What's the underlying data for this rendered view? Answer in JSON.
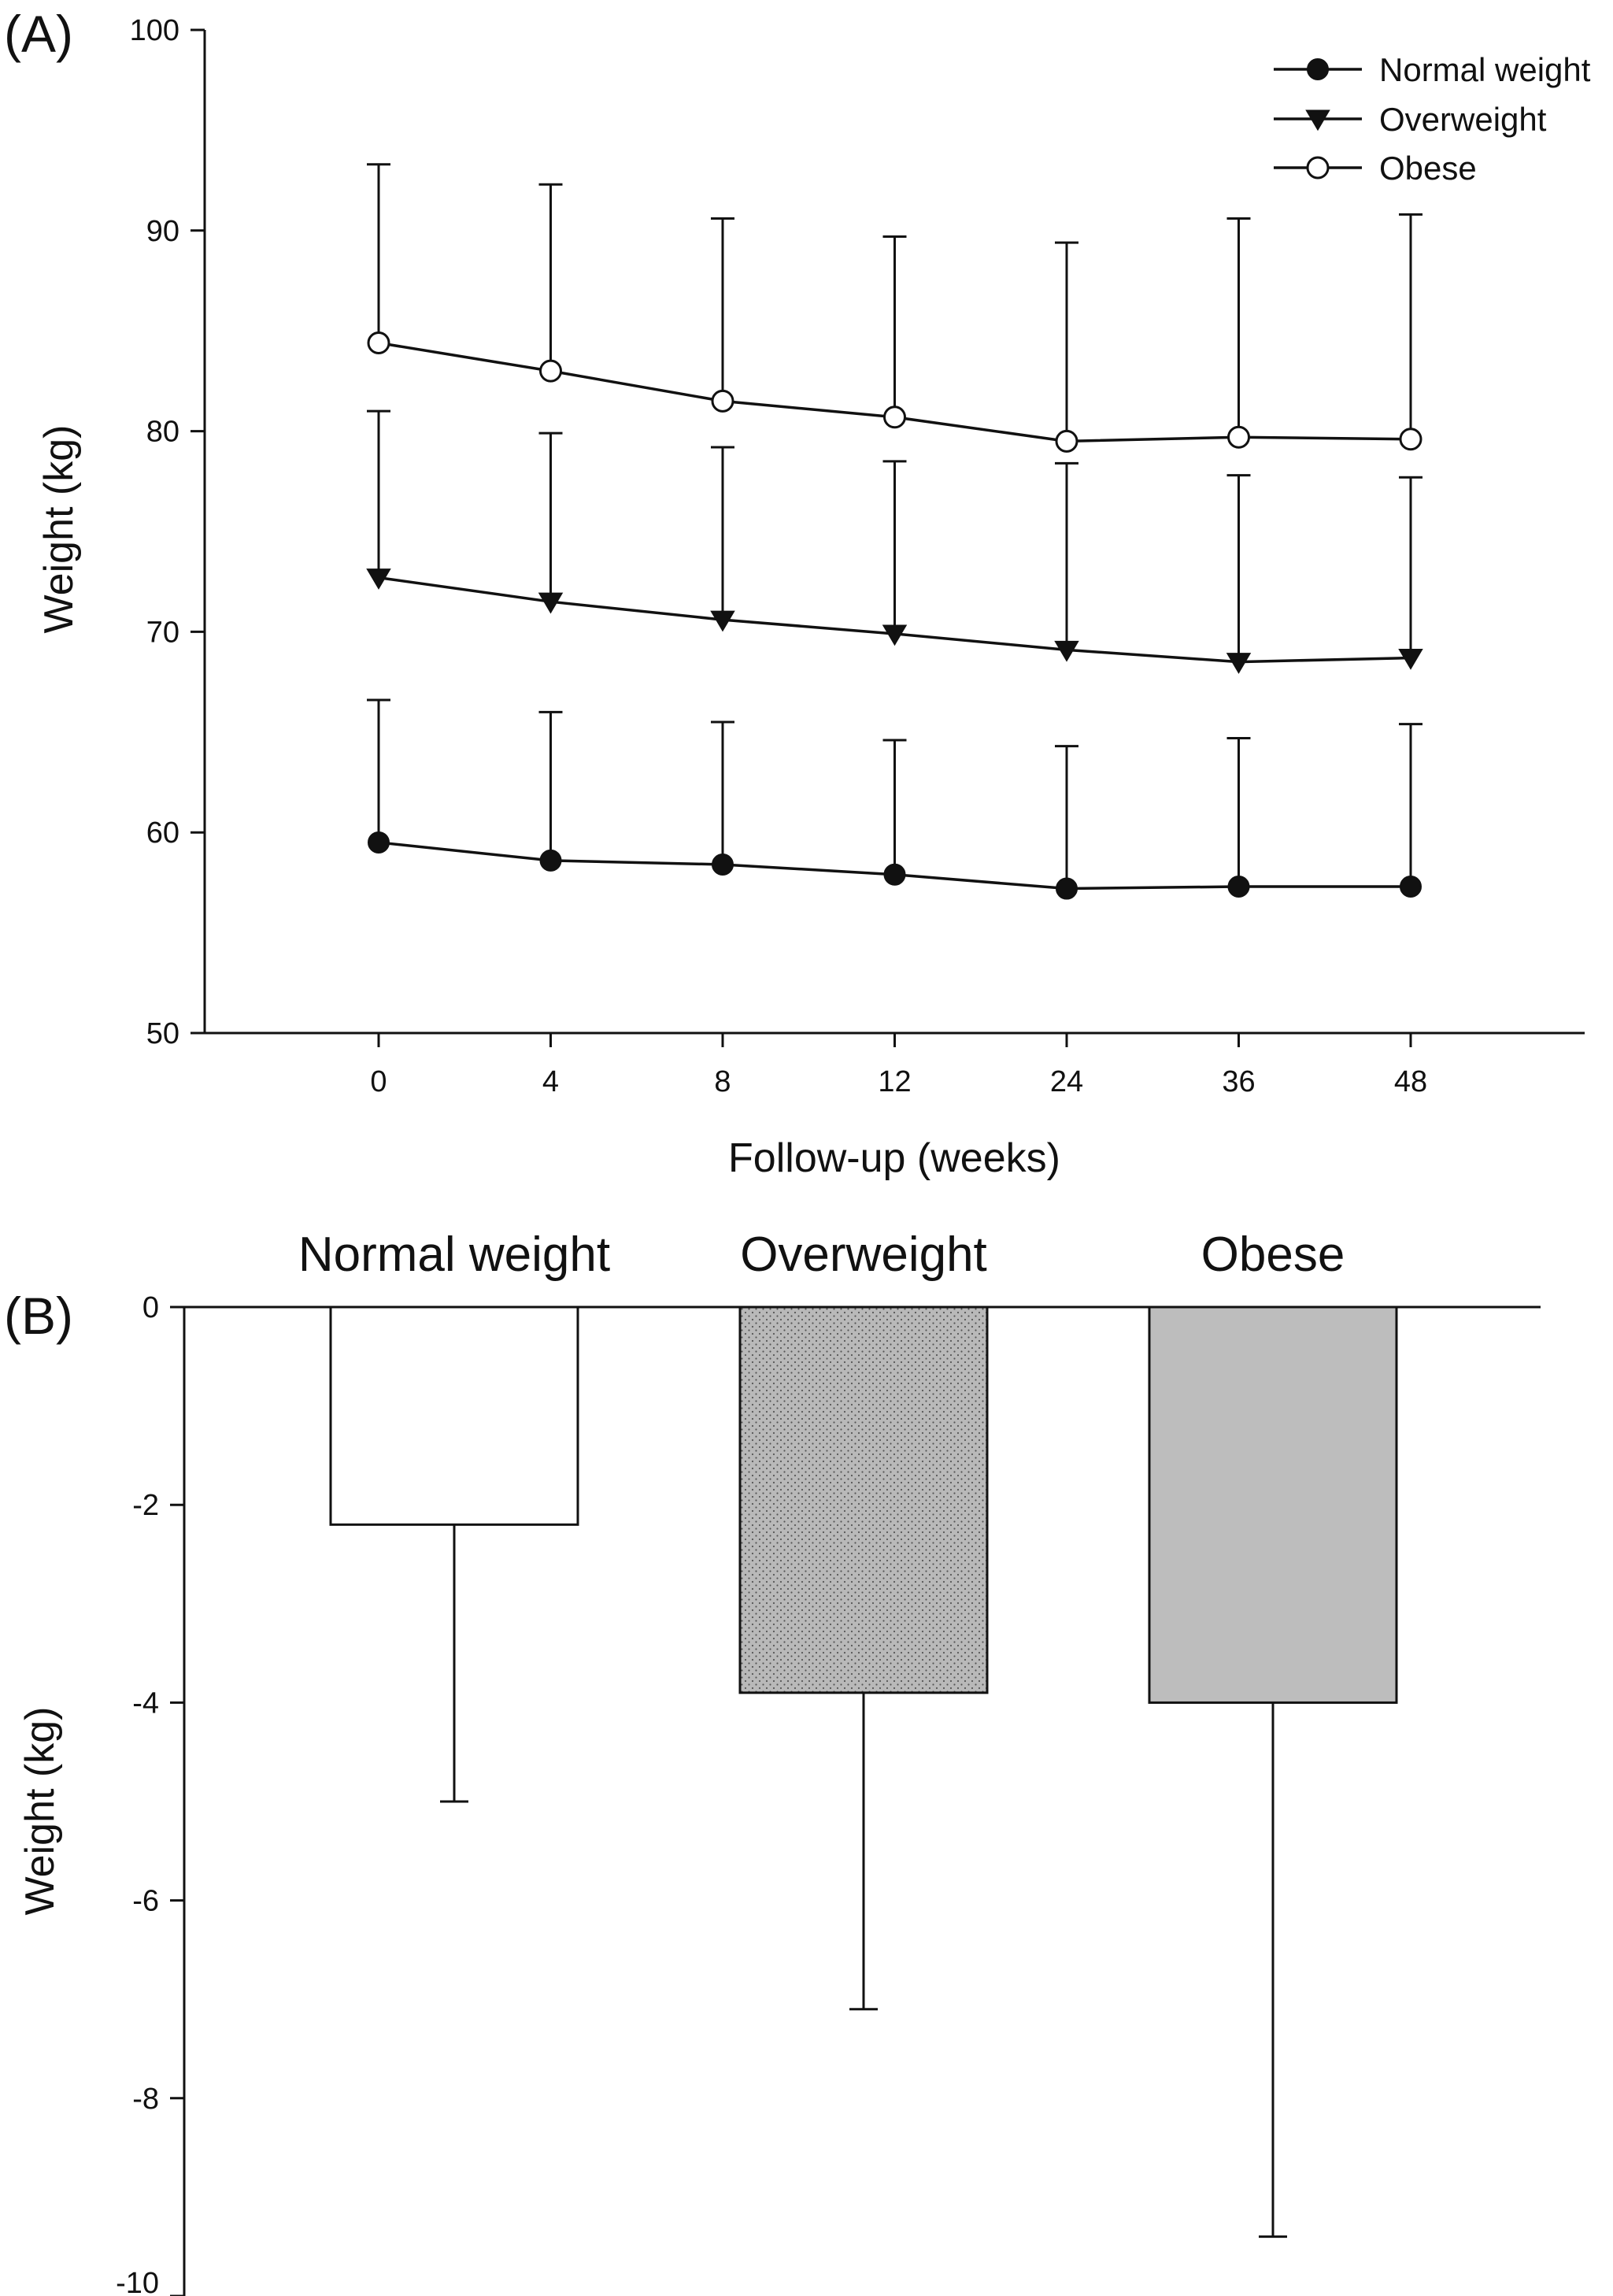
{
  "chart_data": [
    {
      "panel": "(A)",
      "type": "line",
      "xlabel": "Follow-up (weeks)",
      "ylabel": "Weight (kg)",
      "categories": [
        "0",
        "4",
        "8",
        "12",
        "24",
        "36",
        "48"
      ],
      "ylim": [
        50,
        100
      ],
      "yticks": [
        "50",
        "60",
        "70",
        "80",
        "90",
        "100"
      ],
      "legend_position": "top-right",
      "series": [
        {
          "name": "Normal weight",
          "marker": "filled-circle",
          "values": [
            59.5,
            58.6,
            58.4,
            57.9,
            57.2,
            57.3,
            57.3
          ],
          "error_upper": [
            66.6,
            66.0,
            65.5,
            64.6,
            64.3,
            64.7,
            65.4
          ]
        },
        {
          "name": "Overweight",
          "marker": "filled-triangle-down",
          "values": [
            72.7,
            71.5,
            70.6,
            69.9,
            69.1,
            68.5,
            68.7
          ],
          "error_upper": [
            81.0,
            79.9,
            79.2,
            78.5,
            78.4,
            77.8,
            77.7
          ]
        },
        {
          "name": "Obese",
          "marker": "open-circle",
          "values": [
            84.4,
            83.0,
            81.5,
            80.7,
            79.5,
            79.7,
            79.6
          ],
          "error_upper": [
            93.3,
            92.3,
            90.6,
            89.7,
            89.4,
            90.6,
            90.8
          ]
        }
      ]
    },
    {
      "panel": "(B)",
      "type": "bar",
      "ylabel": "Weight (kg)",
      "categories": [
        "Normal weight",
        "Overweight",
        "Obese"
      ],
      "values": [
        -2.2,
        -3.9,
        -4.0
      ],
      "error_lower": [
        -5.0,
        -7.1,
        -9.4
      ],
      "ylim": [
        -10,
        0
      ],
      "yticks": [
        "0",
        "-2",
        "-4",
        "-6",
        "-8",
        "-10"
      ],
      "bar_fills": [
        "#ffffff",
        "#b9b9b9",
        "#bdbdbd"
      ],
      "bar_patterns": [
        "none",
        "dotted",
        "none"
      ]
    }
  ]
}
